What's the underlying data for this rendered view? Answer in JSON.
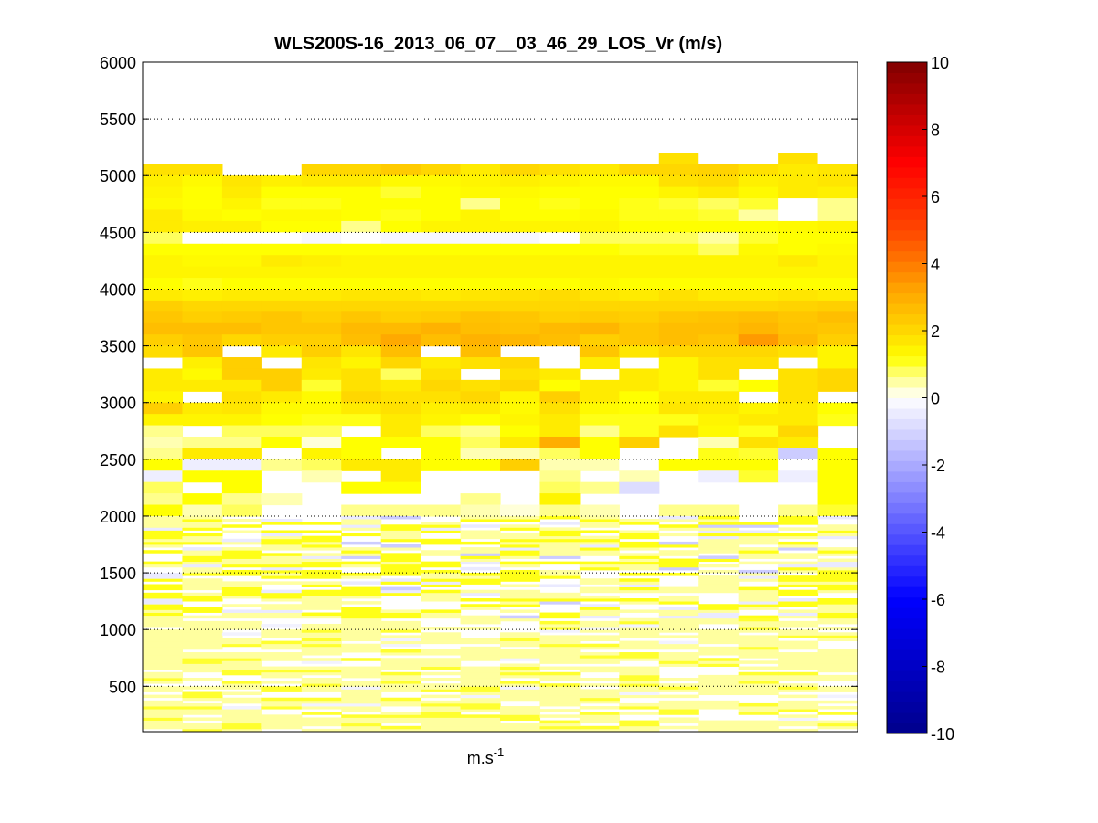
{
  "chart_data": {
    "type": "heatmap",
    "title": "WLS200S-16_2013_06_07__03_46_29_LOS_Vr (m/s)",
    "xlabel_base": "m.s",
    "xlabel_exp": "-1",
    "ylabel": "",
    "columns": 18,
    "ylim": [
      100,
      6000
    ],
    "yticks": [
      500,
      1000,
      1500,
      2000,
      2500,
      3000,
      3500,
      4000,
      4500,
      5000,
      5500,
      6000
    ],
    "colorbar": {
      "clim": [
        -10,
        10
      ],
      "ticks": [
        -10,
        -8,
        -6,
        -4,
        -2,
        0,
        2,
        4,
        6,
        8,
        10
      ]
    },
    "grid": "dotted horizontal lines at y tick positions",
    "range_bins": [
      {
        "base": 5000,
        "top": 5100,
        "values": [
          1.8,
          1.8,
          null,
          null,
          2,
          2,
          2.3,
          2,
          1.6,
          2,
          1.8,
          1.6,
          2,
          2,
          2.1,
          1.8,
          1.6,
          1.7
        ]
      },
      {
        "base": 4900,
        "top": 5000,
        "values": [
          1.5,
          1.3,
          1.7,
          1.5,
          1.6,
          1.6,
          1.3,
          1.3,
          1.4,
          1.5,
          1.4,
          1.3,
          1.3,
          1.8,
          1.9,
          1.5,
          1.6,
          1.7
        ]
      },
      {
        "base": 4800,
        "top": 4900,
        "values": [
          1.4,
          1.2,
          1.6,
          1.2,
          1.2,
          1.2,
          1,
          1.2,
          1.3,
          1.3,
          1.2,
          1.2,
          1.2,
          1.4,
          1.6,
          1.3,
          1.6,
          1.5
        ]
      },
      {
        "base": 4700,
        "top": 4800,
        "values": [
          1.3,
          1.2,
          1.4,
          1.1,
          1.1,
          1.2,
          1.2,
          1.2,
          0.6,
          1.2,
          1.1,
          1.2,
          1.1,
          1,
          0.8,
          1,
          0,
          0.6
        ]
      },
      {
        "base": 4600,
        "top": 4700,
        "values": [
          1.6,
          1.3,
          1.2,
          1.3,
          1.3,
          1.2,
          1.1,
          1.2,
          1.4,
          1.2,
          1.2,
          1.3,
          1.1,
          1.1,
          1,
          0.5,
          0,
          0.6
        ]
      },
      {
        "base": 4500,
        "top": 4600,
        "values": [
          1.6,
          1.5,
          1.5,
          1.2,
          1.2,
          0.6,
          1.2,
          1.4,
          1.4,
          1.4,
          1.4,
          1.4,
          1.2,
          1.2,
          1.2,
          1.2,
          1.3,
          1.4
        ]
      },
      {
        "base": 4400,
        "top": 4500,
        "values": [
          0.8,
          0,
          0,
          0,
          -0.2,
          0,
          -0.2,
          -0.2,
          -0.2,
          -0.2,
          0,
          0.8,
          0.8,
          0.8,
          0.5,
          1,
          1.2,
          1.2
        ]
      },
      {
        "base": 4300,
        "top": 4400,
        "values": [
          1.2,
          1.2,
          1.2,
          1.2,
          1.2,
          1.2,
          1.2,
          1.2,
          1.2,
          1.2,
          1.2,
          1.2,
          1.1,
          1.1,
          0.8,
          1.3,
          1.2,
          1.3
        ]
      },
      {
        "base": 4200,
        "top": 4300,
        "values": [
          1.4,
          1.3,
          1.3,
          1.6,
          1.5,
          1.4,
          1.4,
          1.4,
          1.4,
          1.4,
          1.4,
          1.4,
          1.4,
          1.4,
          1.4,
          1.4,
          1.6,
          1.4
        ]
      },
      {
        "base": 4100,
        "top": 4200,
        "values": [
          1.4,
          1.4,
          1.4,
          1.4,
          1.4,
          1.4,
          1.4,
          1.4,
          1.4,
          1.4,
          1.4,
          1.4,
          1.4,
          1.4,
          1.4,
          1.4,
          1.4,
          1.4
        ]
      },
      {
        "base": 4000,
        "top": 4100,
        "values": [
          1.2,
          1.1,
          1.2,
          1.2,
          1.2,
          1.2,
          1.2,
          1.2,
          1.2,
          1.2,
          1.2,
          1.3,
          1.2,
          1.2,
          1.2,
          1.2,
          1.2,
          1.2
        ]
      },
      {
        "base": 3900,
        "top": 4000,
        "values": [
          1.6,
          1.5,
          1.6,
          1.6,
          1.6,
          1.7,
          1.7,
          1.6,
          1.7,
          1.8,
          1.9,
          1.7,
          1.6,
          1.8,
          1.6,
          1.6,
          1.7,
          1.6
        ]
      },
      {
        "base": 3800,
        "top": 3900,
        "values": [
          2.2,
          2,
          2,
          2,
          2,
          2,
          2,
          2,
          2,
          2,
          2,
          2,
          2,
          2,
          2,
          2,
          2.1,
          2.2
        ]
      },
      {
        "base": 3700,
        "top": 3800,
        "values": [
          2.4,
          2.2,
          2.3,
          2.4,
          2.2,
          2.4,
          2.2,
          2.3,
          2.5,
          2.4,
          2.2,
          2.3,
          2.2,
          2.4,
          2.5,
          2.6,
          2.4,
          2.6
        ]
      },
      {
        "base": 3600,
        "top": 3700,
        "values": [
          2.6,
          2.6,
          2.6,
          2.4,
          2.4,
          2.7,
          2.7,
          2.9,
          2.6,
          2.5,
          2.7,
          2.8,
          2.4,
          2.6,
          2.6,
          2.8,
          2.5,
          2.4
        ]
      },
      {
        "base": 3500,
        "top": 3600,
        "values": [
          2.2,
          2.4,
          2,
          2.2,
          2.2,
          2.6,
          3.1,
          2.6,
          2.9,
          2.8,
          2.6,
          2.2,
          2.4,
          2.6,
          2.4,
          3.4,
          2.7,
          2.2
        ]
      },
      {
        "base": 3400,
        "top": 3500,
        "values": [
          1.9,
          2.4,
          null,
          1.6,
          2.2,
          1.7,
          2.6,
          null,
          2.6,
          null,
          null,
          2.4,
          1.7,
          2,
          2,
          2,
          1.8,
          1.4
        ]
      },
      {
        "base": 3300,
        "top": 3400,
        "values": [
          null,
          1.5,
          2.2,
          null,
          1.7,
          1.4,
          2,
          1.6,
          1.8,
          2,
          0,
          1.6,
          null,
          1.4,
          1.8,
          1.8,
          null,
          1.4
        ]
      },
      {
        "base": 3200,
        "top": 3300,
        "values": [
          1.6,
          1.3,
          2.2,
          2.2,
          1.6,
          1.8,
          0.8,
          1.8,
          null,
          1.8,
          1.6,
          null,
          1.6,
          1.4,
          1.8,
          null,
          1.8,
          2
        ]
      },
      {
        "base": 3100,
        "top": 3200,
        "values": [
          1.6,
          1.6,
          1.6,
          2.2,
          1,
          1.8,
          1.6,
          2,
          1.8,
          2,
          1.2,
          1.6,
          1.6,
          1.4,
          1,
          1.2,
          1.8,
          2
        ]
      },
      {
        "base": 3000,
        "top": 3100,
        "values": [
          1.4,
          null,
          1.8,
          1.6,
          1.3,
          2,
          1.8,
          1.8,
          2,
          1.4,
          2.2,
          1.6,
          1.2,
          1.6,
          1.6,
          null,
          1.8,
          null
        ]
      },
      {
        "base": 2900,
        "top": 3000,
        "values": [
          2.2,
          1.6,
          1.7,
          1.3,
          1.3,
          1.6,
          1.8,
          1.5,
          1.6,
          1.3,
          1.8,
          1.3,
          1.2,
          1.7,
          1.6,
          1.4,
          1.6,
          1.2
        ]
      },
      {
        "base": 2800,
        "top": 2900,
        "values": [
          1.4,
          1.4,
          1.4,
          1.2,
          1.1,
          1.1,
          1.6,
          1.4,
          1.2,
          1.4,
          1.6,
          1.1,
          1.1,
          1.1,
          1.4,
          1.6,
          1.6,
          1.1
        ]
      },
      {
        "base": 2700,
        "top": 2800,
        "values": [
          0.6,
          null,
          0.8,
          0.8,
          0.8,
          null,
          1.6,
          0.8,
          0.6,
          1.2,
          1.6,
          0.6,
          1.1,
          1.8,
          1.3,
          1.1,
          2,
          null
        ]
      },
      {
        "base": 2600,
        "top": 2700,
        "values": [
          0.4,
          0.6,
          0.6,
          1.2,
          0.2,
          1.2,
          1.2,
          1.2,
          0.8,
          1.6,
          3,
          1.2,
          2.2,
          null,
          0.4,
          1.8,
          1.6,
          null
        ]
      },
      {
        "base": 2500,
        "top": 2600,
        "values": [
          0.6,
          1.6,
          1.6,
          null,
          1.4,
          1.2,
          null,
          1.2,
          0.4,
          0.4,
          0.8,
          1.2,
          null,
          0,
          1.1,
          1,
          -1.2,
          1.2
        ]
      },
      {
        "base": 2400,
        "top": 2500,
        "values": [
          1.2,
          -0.4,
          -0.4,
          0.6,
          0.8,
          1.6,
          1.6,
          1.2,
          1.2,
          2.2,
          0.4,
          0.4,
          0,
          1.2,
          1.2,
          1.2,
          0,
          1.2
        ]
      },
      {
        "base": 2300,
        "top": 2400,
        "values": [
          -0.4,
          1.2,
          1.2,
          null,
          0.4,
          null,
          1.6,
          null,
          null,
          null,
          0.6,
          null,
          0.4,
          null,
          -0.4,
          1,
          -0.4,
          1.2
        ]
      },
      {
        "base": 2200,
        "top": 2300,
        "values": [
          0.8,
          null,
          1.2,
          null,
          null,
          1.2,
          1.2,
          null,
          null,
          null,
          0.8,
          0.6,
          -0.8,
          null,
          null,
          null,
          null,
          1.2
        ]
      },
      {
        "base": 2100,
        "top": 2200,
        "values": [
          0.6,
          1.2,
          0.6,
          0.4,
          null,
          null,
          null,
          null,
          0.6,
          null,
          1.4,
          null,
          null,
          null,
          null,
          null,
          null,
          1.2
        ]
      },
      {
        "base": 2000,
        "top": 2100,
        "values": [
          1.2,
          0.4,
          0.8,
          null,
          null,
          0.6,
          0.6,
          0.6,
          0.4,
          0.2,
          0.6,
          0.4,
          null,
          0.6,
          0.6,
          null,
          0.6,
          1
        ]
      }
    ],
    "lower_region_note": "Below 2000 m the data is noisy: thin horizontal bins alternating mostly between 0 and +1 m/s with scattered -1 m/s values"
  }
}
